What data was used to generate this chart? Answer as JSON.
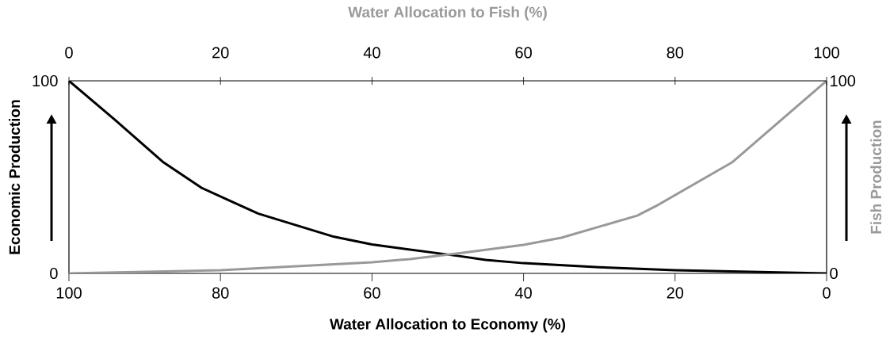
{
  "chart_data": {
    "type": "line",
    "xlabel": "Water Allocation to Economy (%)",
    "ylabel": "Economic Production",
    "x2label": "Water Allocation to Fish (%)",
    "y2label": "Fish Production",
    "x": [
      100,
      94,
      87.5,
      82.5,
      75,
      65,
      60,
      48.5,
      45,
      40,
      30,
      20,
      0
    ],
    "xlim": [
      100,
      0
    ],
    "xticks": [
      100,
      80,
      60,
      40,
      20,
      0
    ],
    "x2lim": [
      0,
      100
    ],
    "x2ticks": [
      0,
      20,
      40,
      60,
      80,
      100
    ],
    "ylim": [
      0,
      100
    ],
    "yticks": [
      0,
      100
    ],
    "y2lim": [
      0,
      100
    ],
    "y2ticks": [
      0,
      100
    ],
    "series": [
      {
        "color": "#000000",
        "values": [
          100,
          80,
          57.6,
          44.4,
          31,
          19,
          15,
          9,
          7,
          5.3,
          3.2,
          1.6,
          0
        ]
      },
      {
        "color": "#999999",
        "axis": "y2",
        "x": [
          100,
          80,
          60,
          55,
          48,
          40,
          35,
          25,
          22.5,
          12.5,
          0
        ],
        "values": [
          0,
          1.6,
          5.8,
          7.4,
          10.7,
          14.8,
          18.5,
          30,
          35,
          57.6,
          100
        ]
      }
    ],
    "grid": false,
    "marker": "none",
    "line_style": "solid"
  }
}
